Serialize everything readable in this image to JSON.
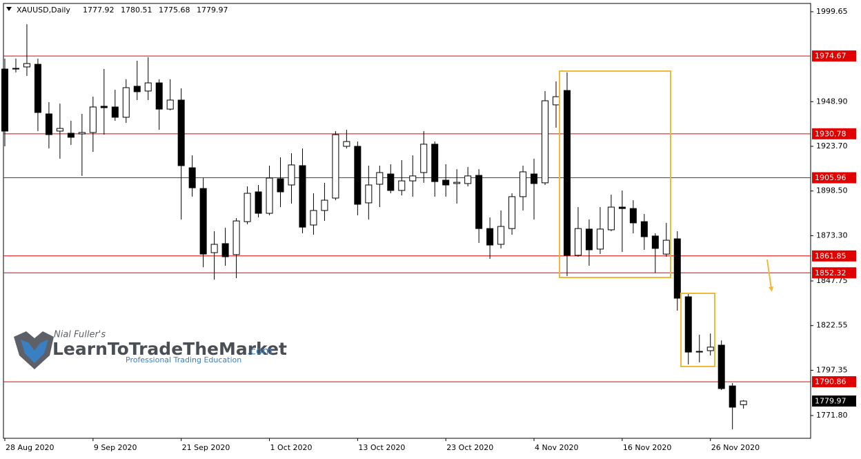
{
  "chart_data": {
    "type": "candlestick",
    "title": "XAUUSD,Daily",
    "categories": [
      "28 Aug 2020",
      null,
      null,
      null,
      null,
      null,
      null,
      null,
      "9 Sep 2020",
      null,
      null,
      null,
      null,
      null,
      null,
      null,
      "21 Sep 2020",
      null,
      null,
      null,
      null,
      null,
      null,
      null,
      "1 Oct 2020",
      null,
      null,
      null,
      null,
      null,
      null,
      null,
      "13 Oct 2020",
      null,
      null,
      null,
      null,
      null,
      null,
      null,
      "23 Oct 2020",
      null,
      null,
      null,
      null,
      null,
      null,
      null,
      "4 Nov 2020",
      null,
      null,
      null,
      null,
      null,
      null,
      null,
      "16 Nov 2020",
      null,
      null,
      null,
      null,
      null,
      null,
      null,
      "26 Nov 2020",
      null,
      null,
      null
    ],
    "open": [
      1967.3,
      1967.7,
      1968.5,
      1970.0,
      1942.0,
      1932.3,
      1931.1,
      1930.7,
      1931.5,
      1946.3,
      1945.9,
      1940.1,
      1957.6,
      1954.9,
      1959.5,
      1944.7,
      1949.8,
      1911.6,
      1899.9,
      1863.7,
      1868.8,
      1862.6,
      1881.2,
      1898.0,
      1885.9,
      1905.4,
      1901.9,
      1912.8,
      1879.3,
      1887.5,
      1894.5,
      1923.7,
      1923.7,
      1891.8,
      1902.3,
      1908.1,
      1898.8,
      1904.2,
      1908.9,
      1924.9,
      1904.6,
      1902.7,
      1902.7,
      1907.3,
      1877.3,
      1868.4,
      1877.3,
      1895.3,
      1908.1,
      1903.1,
      1947.1,
      1955.2,
      1862.2,
      1877.0,
      1865.7,
      1876.6,
      1889.4,
      1888.6,
      1881.2,
      1873.1,
      1862.9,
      1871.5,
      1838.8,
      1808.0,
      1808.4,
      1811.5,
      1788.5,
      1777.92
    ],
    "high": [
      1973.2,
      1973.2,
      1992.6,
      1973.2,
      1948.6,
      1947.8,
      1938.1,
      1942.0,
      1951.7,
      1967.3,
      1955.6,
      1961.5,
      1972.0,
      1974.0,
      1961.5,
      1961.5,
      1956.4,
      1918.6,
      1905.8,
      1875.8,
      1877.7,
      1883.2,
      1901.1,
      1901.9,
      1912.8,
      1917.5,
      1919.8,
      1922.5,
      1897.2,
      1903.1,
      1932.3,
      1933.0,
      1926.4,
      1912.8,
      1912.8,
      1913.6,
      1915.9,
      1918.6,
      1932.3,
      1926.4,
      1913.6,
      1910.8,
      1912.0,
      1910.8,
      1883.6,
      1887.5,
      1897.2,
      1912.8,
      1916.7,
      1954.9,
      1960.3,
      1965.4,
      1889.4,
      1882.4,
      1889.4,
      1896.4,
      1898.8,
      1893.3,
      1885.5,
      1874.6,
      1880.5,
      1875.8,
      1840.7,
      1817.4,
      1818.1,
      1814.2,
      1790.1,
      1780.51
    ],
    "low": [
      1923.7,
      1965.4,
      1963.4,
      1932.3,
      1922.5,
      1916.7,
      1924.5,
      1907.0,
      1920.6,
      1930.3,
      1938.1,
      1936.9,
      1949.8,
      1949.8,
      1933.0,
      1944.0,
      1882.4,
      1895.3,
      1855.5,
      1848.5,
      1856.3,
      1849.3,
      1879.7,
      1883.6,
      1884.8,
      1889.4,
      1891.4,
      1874.6,
      1873.8,
      1881.6,
      1893.3,
      1922.5,
      1884.8,
      1882.4,
      1889.4,
      1897.2,
      1896.0,
      1895.3,
      1903.1,
      1895.3,
      1895.3,
      1891.4,
      1901.1,
      1869.2,
      1860.2,
      1866.1,
      1873.8,
      1887.5,
      1882.4,
      1901.9,
      1934.2,
      1850.5,
      1861.4,
      1856.3,
      1862.9,
      1875.8,
      1864.1,
      1874.6,
      1865.3,
      1852.4,
      1861.4,
      1831.0,
      1800.6,
      1801.8,
      1805.7,
      1786.2,
      1764.0,
      1775.68
    ],
    "close": [
      1932.3,
      1967.3,
      1970.4,
      1942.8,
      1930.3,
      1933.8,
      1928.8,
      1931.5,
      1945.9,
      1945.5,
      1940.1,
      1956.8,
      1954.5,
      1959.5,
      1944.7,
      1949.8,
      1912.8,
      1900.3,
      1862.9,
      1868.4,
      1861.4,
      1881.6,
      1897.2,
      1885.9,
      1905.8,
      1898.0,
      1913.2,
      1878.1,
      1887.5,
      1893.3,
      1930.3,
      1926.4,
      1891.0,
      1901.9,
      1908.9,
      1898.8,
      1904.2,
      1907.0,
      1924.9,
      1903.8,
      1901.9,
      1903.4,
      1907.0,
      1877.3,
      1868.0,
      1878.5,
      1895.3,
      1909.3,
      1902.7,
      1949.4,
      1951.7,
      1862.2,
      1877.3,
      1865.3,
      1877.0,
      1889.4,
      1888.6,
      1880.5,
      1872.7,
      1866.1,
      1870.7,
      1838.0,
      1807.6,
      1807.6,
      1810.4,
      1787.0,
      1776.5,
      1779.97
    ],
    "up_color": "#ffffff",
    "down_color": "#000000",
    "ylim": [
      1758.95,
      2004.32
    ],
    "yticks": [
      1999.65,
      {
        "value": 1948.9,
        "label": "1948.90"
      },
      {
        "value": 1923.7,
        "label": "1923.70"
      },
      {
        "value": 1898.5,
        "label": "1898.50"
      },
      {
        "value": 1873.3,
        "label": "1873.30"
      },
      1847.75,
      1822.55,
      1797.35,
      {
        "value": 1771.8,
        "label": "1771.80"
      }
    ],
    "levels": [
      1974.67,
      1930.78,
      1905.96,
      1861.85,
      1852.32,
      1790.86
    ],
    "level_color": "#e00000",
    "watermark": {
      "author": "Nial Fuller's",
      "brand": "LearnToTradeTheMarket",
      "domain": ".com",
      "tagline": "Professional Trading Education"
    }
  }
}
